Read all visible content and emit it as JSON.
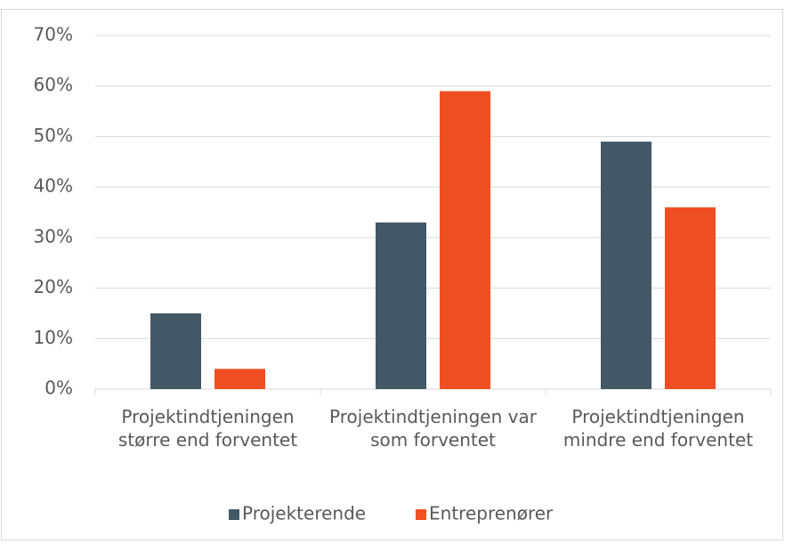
{
  "chart_data": {
    "type": "bar",
    "categories": [
      "Projektindtjeningen større end forventet",
      "Projektindtjeningen var som forventet",
      "Projektindtjeningen mindre end forventet"
    ],
    "series": [
      {
        "name": "Projekterende",
        "color": "#425866",
        "values": [
          15,
          33,
          49
        ]
      },
      {
        "name": "Entreprenører",
        "color": "#f04f23",
        "values": [
          4,
          59,
          36
        ]
      }
    ],
    "ylim": [
      0,
      70
    ],
    "yticks": [
      {
        "value": 0,
        "label": "0%"
      },
      {
        "value": 10,
        "label": "10%"
      },
      {
        "value": 20,
        "label": "20%"
      },
      {
        "value": 30,
        "label": "30%"
      },
      {
        "value": 40,
        "label": "40%"
      },
      {
        "value": 50,
        "label": "50%"
      },
      {
        "value": 60,
        "label": "60%"
      },
      {
        "value": 70,
        "label": "70%"
      }
    ],
    "grid": true,
    "legend": "bottom"
  }
}
